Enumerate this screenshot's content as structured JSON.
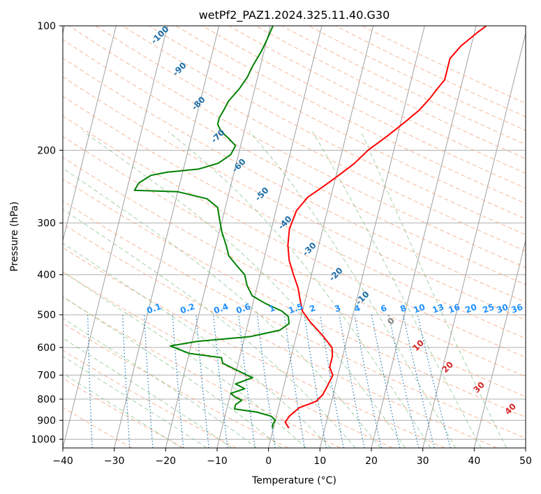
{
  "chart_data": {
    "type": "line",
    "subtype": "skew-t log-p",
    "title": "wetPf2_PAZ1.2024.325.11.40.G30",
    "xlabel": "Temperature (°C)",
    "ylabel": "Pressure (hPa)",
    "xlim": [
      -40,
      50
    ],
    "ylim": [
      1050,
      100
    ],
    "y_scale": "log",
    "grid": true,
    "x_ticks": [
      "−40",
      "−30",
      "−20",
      "−10",
      "0",
      "10",
      "20",
      "30",
      "40",
      "50"
    ],
    "y_ticks": [
      "100",
      "200",
      "300",
      "400",
      "500",
      "600",
      "700",
      "800",
      "900",
      "1000"
    ],
    "series": [
      {
        "color": "#ff0000",
        "points": [
          [
            3.0,
            940
          ],
          [
            2.0,
            910
          ],
          [
            2.5,
            880
          ],
          [
            4.0,
            840
          ],
          [
            7.0,
            810
          ],
          [
            8.0,
            780
          ],
          [
            8.5,
            740
          ],
          [
            9.0,
            700
          ],
          [
            8.0,
            670
          ],
          [
            8.0,
            630
          ],
          [
            7.5,
            600
          ],
          [
            5.0,
            560
          ],
          [
            2.0,
            520
          ],
          [
            0.0,
            490
          ],
          [
            -1.0,
            460
          ],
          [
            -2.0,
            430
          ],
          [
            -3.5,
            400
          ],
          [
            -5.0,
            370
          ],
          [
            -6.0,
            340
          ],
          [
            -6.5,
            310
          ],
          [
            -6.0,
            280
          ],
          [
            -4.5,
            260
          ],
          [
            -2.0,
            245
          ],
          [
            0.5,
            230
          ],
          [
            3.0,
            215
          ],
          [
            5.0,
            200
          ],
          [
            8.0,
            185
          ],
          [
            11.0,
            170
          ],
          [
            13.0,
            160
          ],
          [
            14.5,
            150
          ],
          [
            15.5,
            142
          ],
          [
            16.5,
            135
          ],
          [
            16.5,
            128
          ],
          [
            16.5,
            120
          ],
          [
            18.0,
            112
          ],
          [
            20.5,
            104
          ],
          [
            22.0,
            100
          ]
        ]
      },
      {
        "color": "#008000",
        "points": [
          [
            -0.2,
            940
          ],
          [
            -0.3,
            920
          ],
          [
            0.0,
            900
          ],
          [
            -1.0,
            880
          ],
          [
            -4.0,
            860
          ],
          [
            -8.5,
            845
          ],
          [
            -8.5,
            825
          ],
          [
            -7.5,
            805
          ],
          [
            -9.0,
            790
          ],
          [
            -10.0,
            775
          ],
          [
            -7.5,
            755
          ],
          [
            -9.5,
            735
          ],
          [
            -6.5,
            710
          ],
          [
            -10.0,
            680
          ],
          [
            -13.0,
            655
          ],
          [
            -13.5,
            635
          ],
          [
            -20.0,
            620
          ],
          [
            -24.0,
            595
          ],
          [
            -19.0,
            580
          ],
          [
            -9.0,
            565
          ],
          [
            -3.5,
            545
          ],
          [
            -2.0,
            525
          ],
          [
            -2.5,
            505
          ],
          [
            -4.0,
            490
          ],
          [
            -7.5,
            470
          ],
          [
            -10.5,
            450
          ],
          [
            -12.0,
            425
          ],
          [
            -13.0,
            400
          ],
          [
            -15.0,
            380
          ],
          [
            -17.0,
            360
          ],
          [
            -18.0,
            340
          ],
          [
            -19.5,
            315
          ],
          [
            -20.5,
            295
          ],
          [
            -21.5,
            275
          ],
          [
            -24.0,
            262
          ],
          [
            -30.0,
            252
          ],
          [
            -38.5,
            250
          ],
          [
            -38.0,
            240
          ],
          [
            -36.0,
            230
          ],
          [
            -33.0,
            226
          ],
          [
            -27.0,
            222
          ],
          [
            -23.5,
            215
          ],
          [
            -21.5,
            205
          ],
          [
            -21.0,
            195
          ],
          [
            -22.5,
            188
          ],
          [
            -24.5,
            180
          ],
          [
            -25.5,
            173
          ],
          [
            -25.5,
            167
          ],
          [
            -25.0,
            160
          ],
          [
            -24.5,
            152
          ],
          [
            -23.0,
            142
          ],
          [
            -22.0,
            133
          ],
          [
            -21.5,
            125
          ],
          [
            -20.5,
            115
          ],
          [
            -20.0,
            108
          ],
          [
            -19.5,
            100
          ]
        ]
      }
    ],
    "dry_adiabat_labels": [
      "-100",
      "-90",
      "-80",
      "-70",
      "-60",
      "-50",
      "-40",
      "-30",
      "-20",
      "-10",
      "0",
      "10",
      "20",
      "30",
      "40"
    ],
    "moist_adiabat_label": "0",
    "mixing_ratio_labels": [
      "0.1",
      "0.2",
      "0.4",
      "0.6",
      "1",
      "1.5",
      "2",
      "3",
      "4",
      "6",
      "8",
      "10",
      "13",
      "16",
      "20",
      "25",
      "30",
      "36"
    ],
    "colors": {
      "temperature": "#ff0000",
      "dewpoint": "#008000",
      "dry_adiabat": "#f4a582",
      "moist_adiabat": "#7fbf7f",
      "mixing_ratio": "#1f77b4",
      "dry_label_cold": "#1f6fa8",
      "dry_label_warm": "#d62728",
      "mixing_label": "#1e90ff",
      "moist_label": "#808080",
      "isotherm": "#a0a0a0",
      "grid": "#b0b0b0",
      "secondary_curve": "#d2b48c"
    }
  }
}
